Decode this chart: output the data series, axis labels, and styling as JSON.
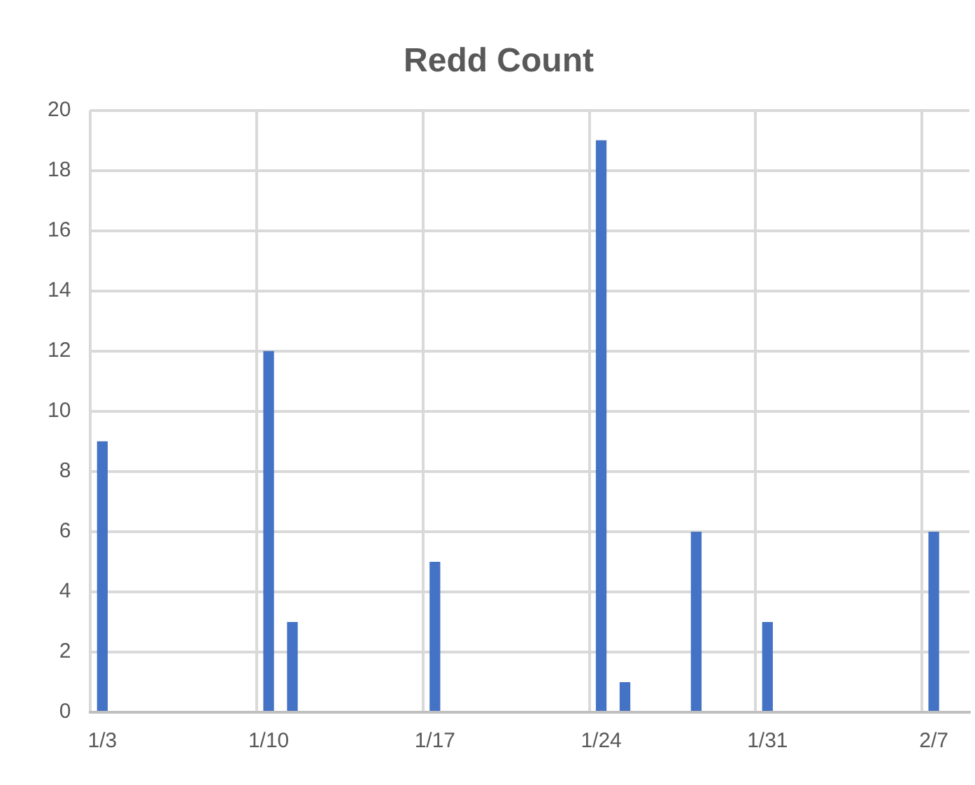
{
  "chart_data": {
    "type": "bar",
    "title": "Redd Count",
    "categories": [
      "1/3",
      null,
      null,
      null,
      null,
      null,
      null,
      "1/10",
      null,
      null,
      null,
      null,
      null,
      null,
      "1/17",
      null,
      null,
      null,
      null,
      null,
      null,
      "1/24",
      null,
      null,
      null,
      null,
      null,
      null,
      "1/31",
      null,
      null,
      null,
      null,
      null,
      null,
      "2/7",
      null
    ],
    "series": [
      {
        "color": "#4472c4",
        "values": [
          9,
          null,
          null,
          null,
          null,
          null,
          null,
          12,
          3,
          null,
          null,
          null,
          null,
          null,
          5,
          null,
          null,
          null,
          null,
          null,
          null,
          19,
          1,
          null,
          null,
          6,
          null,
          null,
          3,
          null,
          null,
          null,
          null,
          null,
          null,
          6,
          null
        ]
      }
    ],
    "ylim": [
      0,
      20
    ],
    "yticks": [
      0,
      2,
      4,
      6,
      8,
      10,
      12,
      14,
      16,
      18,
      20
    ],
    "grid": true
  }
}
